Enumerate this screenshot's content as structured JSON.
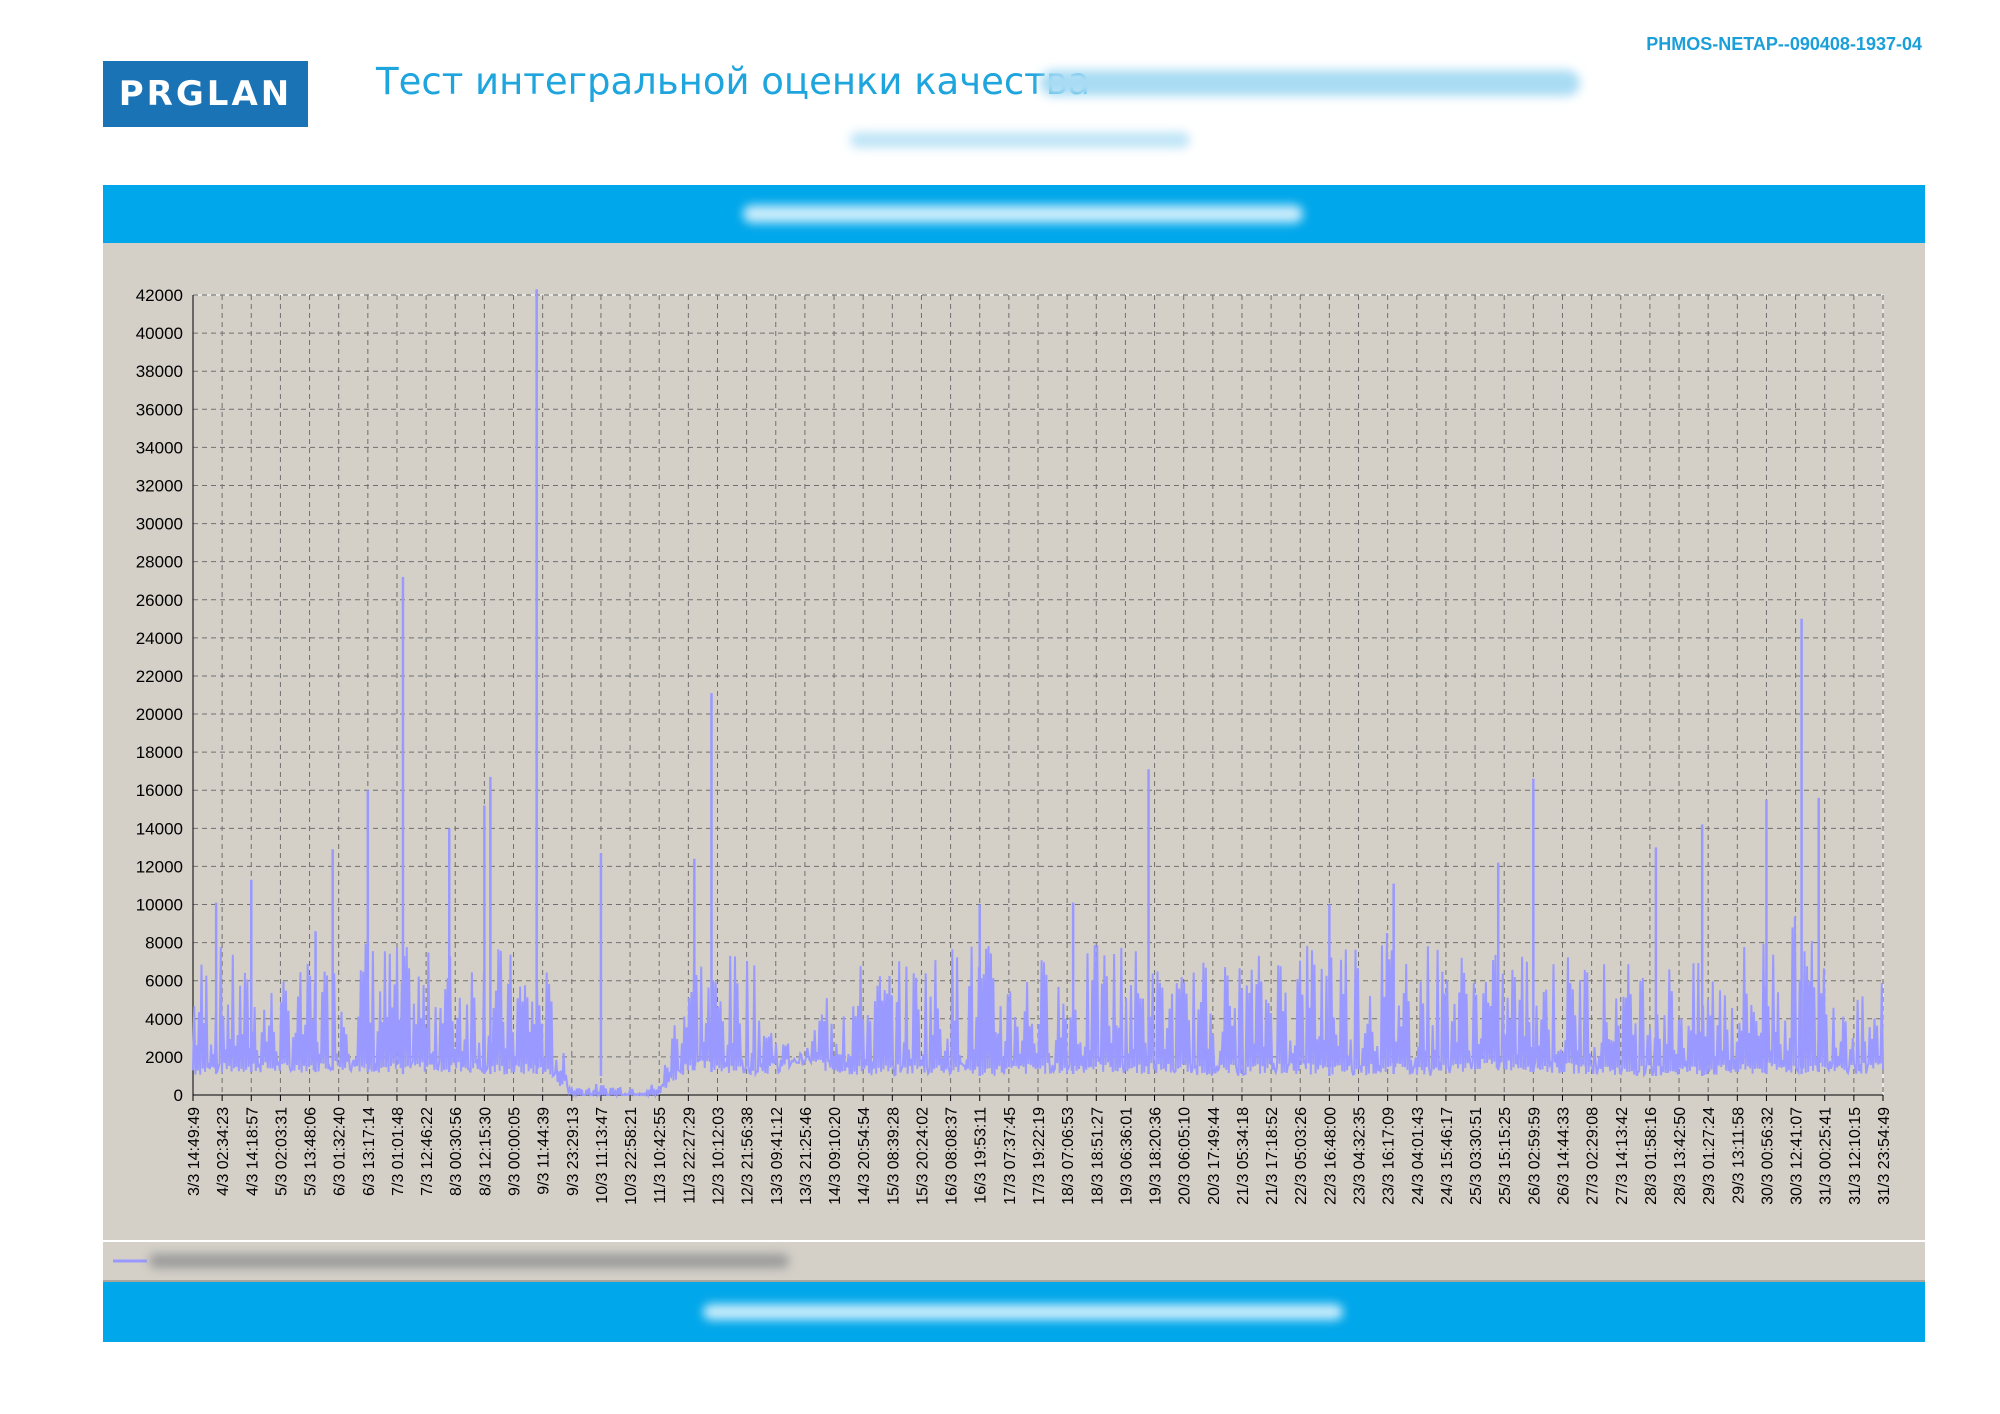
{
  "header": {
    "doc_id": "PHMOS-NETAP--090408-1937-04",
    "logo_text": "PRGLAN",
    "title": "Тест интегральной оценки качества"
  },
  "colors": {
    "accent": "#00a7ea",
    "series": "#9999ff",
    "panel": "#d4d0c8",
    "logo": "#1a73b5"
  },
  "chart_data": {
    "type": "line",
    "title": "",
    "xlabel": "",
    "ylabel": "",
    "ylim": [
      0,
      42000
    ],
    "grid": true,
    "legend": "bottom-left",
    "yticks": [
      0,
      2000,
      4000,
      6000,
      8000,
      10000,
      12000,
      14000,
      16000,
      18000,
      20000,
      22000,
      24000,
      26000,
      28000,
      30000,
      32000,
      34000,
      36000,
      38000,
      40000,
      42000
    ],
    "x_tick_labels": [
      "3/3 14:49:49",
      "4/3 02:34:23",
      "4/3 14:18:57",
      "5/3 02:03:31",
      "5/3 13:48:06",
      "6/3 01:32:40",
      "6/3 13:17:14",
      "7/3 01:01:48",
      "7/3 12:46:22",
      "8/3 00:30:56",
      "8/3 12:15:30",
      "9/3 00:00:05",
      "9/3 11:44:39",
      "9/3 23:29:13",
      "10/3 11:13:47",
      "10/3 22:58:21",
      "11/3 10:42:55",
      "11/3 22:27:29",
      "12/3 10:12:03",
      "12/3 21:56:38",
      "13/3 09:41:12",
      "13/3 21:25:46",
      "14/3 09:10:20",
      "14/3 20:54:54",
      "15/3 08:39:28",
      "15/3 20:24:02",
      "16/3 08:08:37",
      "16/3 19:53:11",
      "17/3 07:37:45",
      "17/3 19:22:19",
      "18/3 07:06:53",
      "18/3 18:51:27",
      "19/3 06:36:01",
      "19/3 18:20:36",
      "20/3 06:05:10",
      "20/3 17:49:44",
      "21/3 05:34:18",
      "21/3 17:18:52",
      "22/3 05:03:26",
      "22/3 16:48:00",
      "23/3 04:32:35",
      "23/3 16:17:09",
      "24/3 04:01:43",
      "24/3 15:46:17",
      "25/3 03:30:51",
      "25/3 15:15:25",
      "26/3 02:59:59",
      "26/3 14:44:33",
      "27/3 02:29:08",
      "27/3 14:13:42",
      "28/3 01:58:16",
      "28/3 13:42:50",
      "29/3 01:27:24",
      "29/3 13:11:58",
      "30/3 00:56:32",
      "30/3 12:41:07",
      "31/3 00:25:41",
      "31/3 12:10:15",
      "31/3 23:54:49"
    ],
    "series": [
      {
        "baseline": [
          1000,
          1100,
          1200,
          1100,
          1200,
          1300,
          1200,
          1100,
          1200,
          1200,
          1100,
          1000,
          1100,
          0,
          0,
          0,
          0,
          1300,
          1200,
          1100,
          1100,
          1600,
          1100,
          1000,
          1000,
          1100,
          1100,
          1000,
          1000,
          1100,
          1100,
          1200,
          1100,
          1100,
          1100,
          1000,
          1000,
          1100,
          1100,
          1000,
          1000,
          1100,
          1000,
          1000,
          1300,
          1300,
          1200,
          1100,
          1100,
          1000,
          1000,
          1000,
          1000,
          1000,
          1100,
          1100,
          1200,
          1100,
          1100
        ],
        "typical_high": [
          7500,
          8000,
          6500,
          6000,
          7000,
          7500,
          8500,
          8000,
          7500,
          8000,
          8500,
          7500,
          8000,
          0,
          0,
          0,
          0,
          9000,
          7000,
          8000,
          3500,
          2000,
          7500,
          7000,
          7000,
          7500,
          8000,
          8500,
          7000,
          7500,
          7000,
          8000,
          8500,
          7000,
          6500,
          7500,
          7000,
          8000,
          8500,
          9000,
          9000,
          9000,
          8500,
          8000,
          7500,
          7500,
          8000,
          7500,
          7500,
          7000,
          7500,
          7000,
          7000,
          8000,
          9000,
          9500,
          8000,
          6500,
          6000
        ],
        "peaks": [
          {
            "x": "4/3 02:34:23",
            "y": 10100
          },
          {
            "x": "4/3 14:18:57",
            "y": 11300
          },
          {
            "x": "5/3 13:48:06",
            "y": 8600
          },
          {
            "x": "6/3 01:32:40",
            "y": 12900
          },
          {
            "x": "6/3 13:17:14",
            "y": 16000
          },
          {
            "x": "7/3 01:01:48",
            "y": 27200
          },
          {
            "x": "8/3 00:30:56",
            "y": 14000
          },
          {
            "x": "8/3 12:15:30",
            "y": 15200
          },
          {
            "x": "8/3 12:15:30",
            "y": 16700
          },
          {
            "x": "9/3 11:44:39",
            "y": 42300
          },
          {
            "x": "10/3 11:13:47",
            "y": 12700
          },
          {
            "x": "11/3 22:27:29",
            "y": 12400
          },
          {
            "x": "12/3 10:12:03",
            "y": 21100
          },
          {
            "x": "16/3 19:53:11",
            "y": 10000
          },
          {
            "x": "18/3 07:06:53",
            "y": 10100
          },
          {
            "x": "19/3 18:20:36",
            "y": 17100
          },
          {
            "x": "22/3 16:48:00",
            "y": 10000
          },
          {
            "x": "23/3 16:17:09",
            "y": 11100
          },
          {
            "x": "25/3 15:15:25",
            "y": 12200
          },
          {
            "x": "26/3 02:59:59",
            "y": 16600
          },
          {
            "x": "28/3 01:58:16",
            "y": 13000
          },
          {
            "x": "29/3 01:27:24",
            "y": 14200
          },
          {
            "x": "30/3 00:56:32",
            "y": 15500
          },
          {
            "x": "30/3 12:41:07",
            "y": 25000
          },
          {
            "x": "31/3 00:25:41",
            "y": 15600
          }
        ]
      }
    ]
  }
}
